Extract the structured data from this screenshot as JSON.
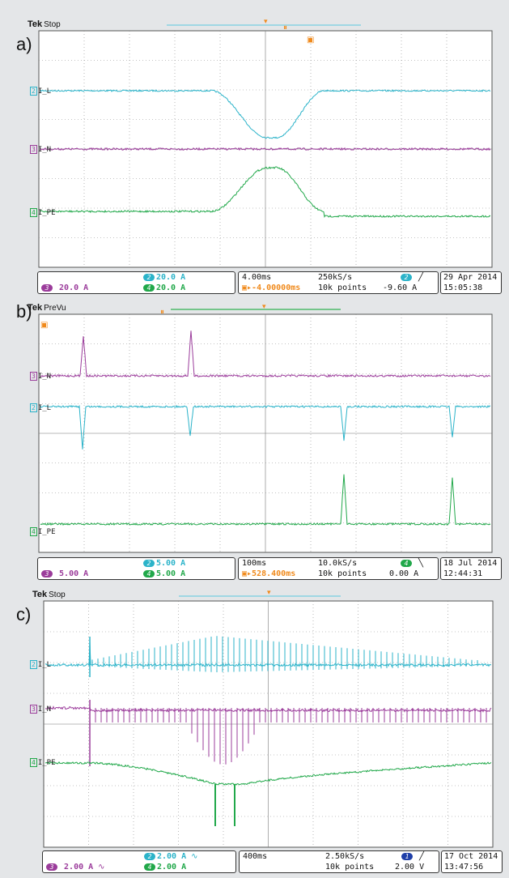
{
  "panels": [
    {
      "letter": "a)",
      "tek": "Tek",
      "mode": "Stop",
      "channels": [
        {
          "num": "2",
          "name": "I_L",
          "color": "#2bb3c9"
        },
        {
          "num": "3",
          "name": "I_N",
          "color": "#9b3c9b"
        },
        {
          "num": "4",
          "name": "I_PE",
          "color": "#21a84a"
        }
      ],
      "status": {
        "ch2_scale": "20.0 A",
        "ch3_scale": "20.0 A",
        "ch4_scale": "20.0 A",
        "timebase": "4.00ms",
        "sample_rate": "250kS/s",
        "position": "-4.00000ms",
        "record_length": "10k points",
        "trigger_channel": "2",
        "trigger_level": "-9.60 A",
        "date": "29 Apr 2014",
        "time": "15:05:38"
      }
    },
    {
      "letter": "b)",
      "tek": "Tek",
      "mode": "PreVu",
      "channels": [
        {
          "num": "3",
          "name": "I_N",
          "color": "#9b3c9b"
        },
        {
          "num": "2",
          "name": "I_L",
          "color": "#2bb3c9"
        },
        {
          "num": "4",
          "name": "I_PE",
          "color": "#21a84a"
        }
      ],
      "status": {
        "ch2_scale": "5.00 A",
        "ch3_scale": "5.00 A",
        "ch4_scale": "5.00 A",
        "timebase": "100ms",
        "sample_rate": "10.0kS/s",
        "position": "528.400ms",
        "record_length": "10k points",
        "trigger_channel": "4",
        "trigger_level": "0.00 A",
        "date": "18 Jul 2014",
        "time": "12:44:31"
      }
    },
    {
      "letter": "c)",
      "tek": "Tek",
      "mode": "Stop",
      "channels": [
        {
          "num": "2",
          "name": "I_L",
          "color": "#2bb3c9"
        },
        {
          "num": "3",
          "name": "I_N",
          "color": "#9b3c9b"
        },
        {
          "num": "4",
          "name": "I_PE",
          "color": "#21a84a"
        }
      ],
      "status": {
        "ch2_scale": "2.00 A",
        "ch3_scale": "2.00 A",
        "ch4_scale": "2.00 A",
        "timebase": "400ms",
        "sample_rate": "2.50kS/s",
        "position": "",
        "record_length": "10k points",
        "trigger_channel": "1",
        "trigger_level": "2.00 V",
        "date": "17 Oct 2014",
        "time": "13:47:56"
      }
    }
  ],
  "colors": {
    "ch1": "#1f3fa8",
    "ch2": "#2bb3c9",
    "ch3": "#9b3c9b",
    "ch4": "#21a84a",
    "marker": "#f08a1c",
    "grid": "#8a8a8a"
  }
}
